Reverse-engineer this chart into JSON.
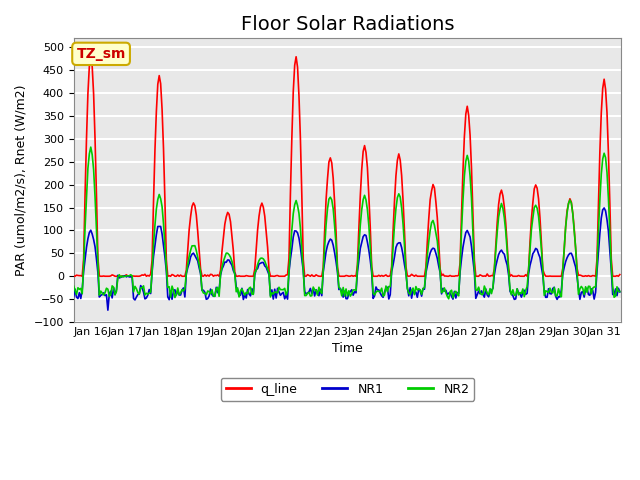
{
  "title": "Floor Solar Radiations",
  "xlabel": "Time",
  "ylabel": "PAR (umol/m2/s), Rnet (W/m2)",
  "ylim": [
    -100,
    520
  ],
  "yticks": [
    -100,
    -50,
    0,
    50,
    100,
    150,
    200,
    250,
    300,
    350,
    400,
    450,
    500
  ],
  "x_tick_labels": [
    "Jan 16",
    "Jan 17",
    "Jan 18",
    "Jan 19",
    "Jan 20",
    "Jan 21",
    "Jan 22",
    "Jan 23",
    "Jan 24",
    "Jan 25",
    "Jan 26",
    "Jan 27",
    "Jan 28",
    "Jan 29",
    "Jan 30",
    "Jan 31"
  ],
  "annotation_text": "TZ_sm",
  "annotation_bbox_facecolor": "#FFFFCC",
  "annotation_bbox_edgecolor": "#CCAA00",
  "annotation_text_color": "#CC0000",
  "line_colors": {
    "q_line": "#FF0000",
    "NR1": "#0000CC",
    "NR2": "#00CC00"
  },
  "line_widths": {
    "q_line": 1.2,
    "NR1": 1.2,
    "NR2": 1.2
  },
  "legend_labels": [
    "q_line",
    "NR1",
    "NR2"
  ],
  "bg_color": "#E8E8E8",
  "grid_color": "#FFFFFF",
  "title_fontsize": 14,
  "label_fontsize": 9,
  "tick_fontsize": 8,
  "q_peaks": [
    480,
    0,
    440,
    160,
    140,
    160,
    480,
    260,
    285,
    265,
    200,
    370,
    185,
    200,
    170,
    430
  ],
  "nr1_peaks": [
    100,
    0,
    110,
    50,
    35,
    30,
    100,
    80,
    90,
    75,
    60,
    100,
    55,
    60,
    50,
    150
  ],
  "nr2_peaks": [
    280,
    0,
    180,
    70,
    50,
    40,
    165,
    175,
    175,
    180,
    120,
    265,
    155,
    155,
    165,
    270
  ]
}
